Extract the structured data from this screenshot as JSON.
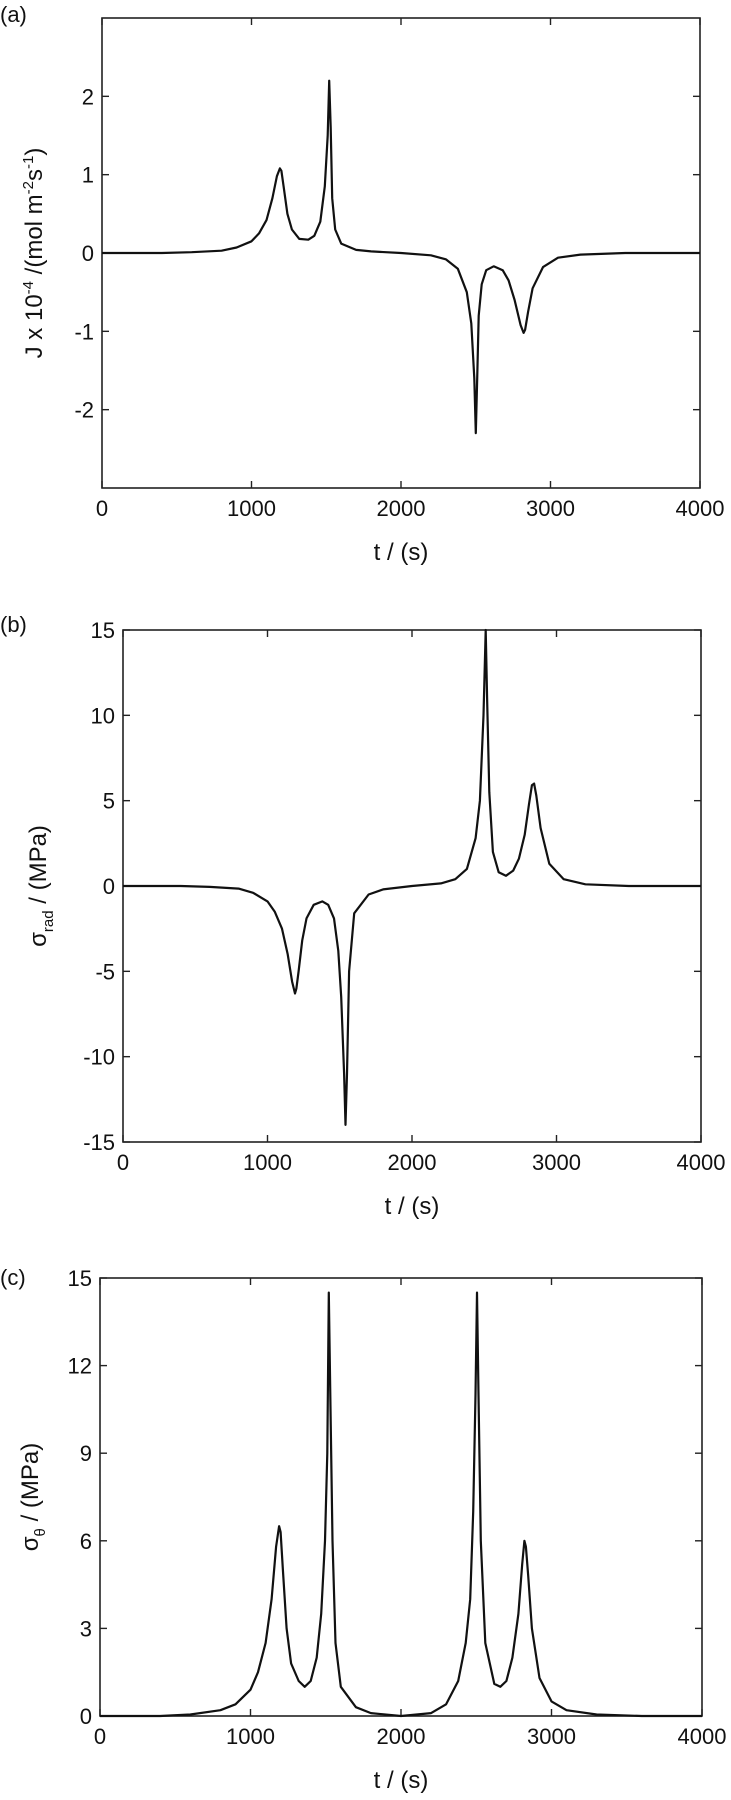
{
  "chart_data": [
    {
      "type": "line",
      "panel_label": "(a)",
      "xlabel": "t / (s)",
      "ylabel_main": "J x 10",
      "ylabel_exp": "-4",
      "ylabel_unit_pre": " /(mol m",
      "ylabel_unit_exp1": "-2",
      "ylabel_unit_mid": "s",
      "ylabel_unit_exp2": "-1",
      "ylabel_unit_post": ")",
      "xlim": [
        0,
        4000
      ],
      "ylim": [
        -3,
        3
      ],
      "xticks": [
        0,
        1000,
        2000,
        3000,
        4000
      ],
      "xtick_labels": [
        "0",
        "1000",
        "2000",
        "3000",
        "4000"
      ],
      "yticks": [
        -2,
        -1,
        0,
        1,
        2
      ],
      "ytick_labels": [
        "-2",
        "-1",
        "0",
        "1",
        "2"
      ],
      "x": [
        0,
        400,
        600,
        800,
        900,
        1000,
        1050,
        1100,
        1140,
        1170,
        1190,
        1200,
        1215,
        1240,
        1270,
        1320,
        1380,
        1420,
        1460,
        1490,
        1510,
        1520,
        1530,
        1540,
        1560,
        1600,
        1700,
        1800,
        2000,
        2200,
        2300,
        2380,
        2440,
        2470,
        2490,
        2500,
        2510,
        2520,
        2540,
        2570,
        2620,
        2680,
        2720,
        2760,
        2800,
        2820,
        2830,
        2850,
        2880,
        2950,
        3050,
        3200,
        3500,
        4000
      ],
      "y": [
        0,
        0,
        0.01,
        0.03,
        0.07,
        0.15,
        0.25,
        0.42,
        0.7,
        0.98,
        1.08,
        1.05,
        0.85,
        0.5,
        0.3,
        0.18,
        0.17,
        0.22,
        0.4,
        0.85,
        1.5,
        2.2,
        1.6,
        0.7,
        0.3,
        0.12,
        0.04,
        0.02,
        0,
        -0.03,
        -0.08,
        -0.2,
        -0.5,
        -0.9,
        -1.6,
        -2.3,
        -1.6,
        -0.8,
        -0.4,
        -0.22,
        -0.17,
        -0.22,
        -0.35,
        -0.6,
        -0.92,
        -1.02,
        -0.98,
        -0.75,
        -0.45,
        -0.18,
        -0.06,
        -0.02,
        0,
        0
      ]
    },
    {
      "type": "line",
      "panel_label": "(b)",
      "xlabel": "t / (s)",
      "ylabel_main": "σ",
      "ylabel_sub": "rad",
      "ylabel_unit": " / (MPa)",
      "xlim": [
        0,
        4000
      ],
      "ylim": [
        -15,
        15
      ],
      "xticks": [
        0,
        1000,
        2000,
        3000,
        4000
      ],
      "xtick_labels": [
        "0",
        "1000",
        "2000",
        "3000",
        "4000"
      ],
      "yticks": [
        -15,
        -10,
        -5,
        0,
        5,
        10,
        15
      ],
      "ytick_labels": [
        "-15",
        "-10",
        "-5",
        "0",
        "5",
        "10",
        "15"
      ],
      "x": [
        0,
        400,
        600,
        800,
        900,
        1000,
        1050,
        1100,
        1140,
        1170,
        1190,
        1200,
        1215,
        1240,
        1270,
        1320,
        1380,
        1420,
        1460,
        1490,
        1510,
        1530,
        1540,
        1550,
        1565,
        1600,
        1700,
        1800,
        2000,
        2200,
        2300,
        2380,
        2440,
        2470,
        2495,
        2510,
        2520,
        2535,
        2560,
        2600,
        2650,
        2700,
        2740,
        2780,
        2810,
        2830,
        2845,
        2860,
        2890,
        2950,
        3050,
        3200,
        3500,
        4000
      ],
      "y": [
        0,
        0,
        -0.05,
        -0.15,
        -0.4,
        -0.9,
        -1.5,
        -2.5,
        -4.0,
        -5.6,
        -6.3,
        -6.0,
        -5.0,
        -3.2,
        -1.9,
        -1.1,
        -0.9,
        -1.1,
        -1.9,
        -3.8,
        -6.5,
        -11.0,
        -14.0,
        -11.0,
        -5.0,
        -1.6,
        -0.5,
        -0.2,
        0,
        0.15,
        0.4,
        1.0,
        2.8,
        5.0,
        10.0,
        15.0,
        11.0,
        5.5,
        2.0,
        0.8,
        0.6,
        0.9,
        1.6,
        3.0,
        4.8,
        5.9,
        6.0,
        5.3,
        3.4,
        1.3,
        0.4,
        0.1,
        0,
        0
      ]
    },
    {
      "type": "line",
      "panel_label": "(c)",
      "xlabel": "t / (s)",
      "ylabel_main": "σ",
      "ylabel_sub": "θ",
      "ylabel_unit": " / (MPa)",
      "xlim": [
        0,
        4000
      ],
      "ylim": [
        0,
        15
      ],
      "xticks": [
        0,
        1000,
        2000,
        3000,
        4000
      ],
      "xtick_labels": [
        "0",
        "1000",
        "2000",
        "3000",
        "4000"
      ],
      "yticks": [
        0,
        3,
        6,
        9,
        12,
        15
      ],
      "ytick_labels": [
        "0",
        "3",
        "6",
        "9",
        "12",
        "15"
      ],
      "x": [
        0,
        400,
        600,
        800,
        900,
        1000,
        1050,
        1100,
        1140,
        1170,
        1190,
        1200,
        1215,
        1240,
        1270,
        1320,
        1360,
        1400,
        1440,
        1470,
        1495,
        1510,
        1520,
        1530,
        1545,
        1565,
        1600,
        1700,
        1800,
        2000,
        2200,
        2300,
        2380,
        2430,
        2460,
        2480,
        2495,
        2505,
        2515,
        2530,
        2560,
        2620,
        2660,
        2700,
        2740,
        2780,
        2805,
        2820,
        2830,
        2845,
        2870,
        2920,
        3000,
        3100,
        3300,
        3600,
        4000
      ],
      "y": [
        0,
        0,
        0.05,
        0.2,
        0.4,
        0.9,
        1.5,
        2.5,
        4.0,
        5.8,
        6.5,
        6.3,
        5.0,
        3.0,
        1.8,
        1.2,
        1.0,
        1.2,
        2.0,
        3.5,
        6.0,
        9.0,
        14.5,
        11.0,
        6.0,
        2.5,
        1.0,
        0.3,
        0.1,
        0,
        0.1,
        0.4,
        1.2,
        2.5,
        4.0,
        7.0,
        11.0,
        14.5,
        11.0,
        6.0,
        2.5,
        1.1,
        1.0,
        1.2,
        2.0,
        3.5,
        5.2,
        6.0,
        5.8,
        4.8,
        3.0,
        1.3,
        0.5,
        0.2,
        0.05,
        0,
        0
      ]
    }
  ]
}
